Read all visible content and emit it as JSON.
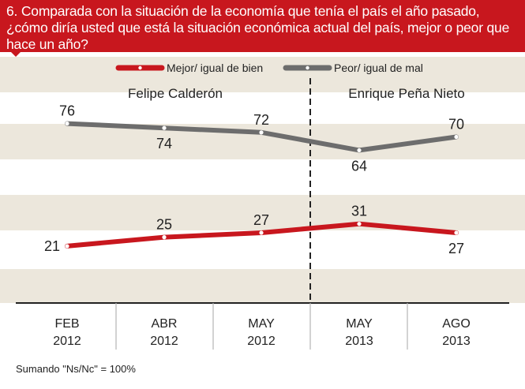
{
  "title": "6. Comparada con la situación de la economía que tenía el país el año pasado, ¿cómo diría usted que está la situación económica actual del país, mejor  o peor que hace un año?",
  "footnote": "Sumando \"Ns/Nc\" = 100%",
  "colors": {
    "banner": "#c8171e",
    "band": "#ece7dc",
    "mejor": "#c8171e",
    "peor": "#6d6d6d"
  },
  "chart_data": {
    "type": "line",
    "x": [
      {
        "month": "FEB",
        "year": "2012"
      },
      {
        "month": "ABR",
        "year": "2012"
      },
      {
        "month": "MAY",
        "year": "2012"
      },
      {
        "month": "MAY",
        "year": "2013"
      },
      {
        "month": "AGO",
        "year": "2013"
      }
    ],
    "series": [
      {
        "name": "Mejor/ igual de bien",
        "color": "#c8171e",
        "values": [
          21,
          25,
          27,
          31,
          27
        ],
        "label_side": [
          "left",
          "above",
          "above",
          "above",
          "below"
        ]
      },
      {
        "name": "Peor/ igual de mal",
        "color": "#6d6d6d",
        "values": [
          76,
          74,
          72,
          64,
          70
        ],
        "label_side": [
          "above",
          "below",
          "above",
          "below",
          "above"
        ]
      }
    ],
    "periods": [
      {
        "name": "Felipe Calderón",
        "span": [
          0,
          2
        ]
      },
      {
        "name": "Enrique Peña Nieto",
        "span": [
          3,
          4
        ]
      }
    ],
    "period_divider": "between-3-and-4",
    "ylim": [
      10,
      90
    ],
    "legend_position": "top",
    "grid": false
  }
}
